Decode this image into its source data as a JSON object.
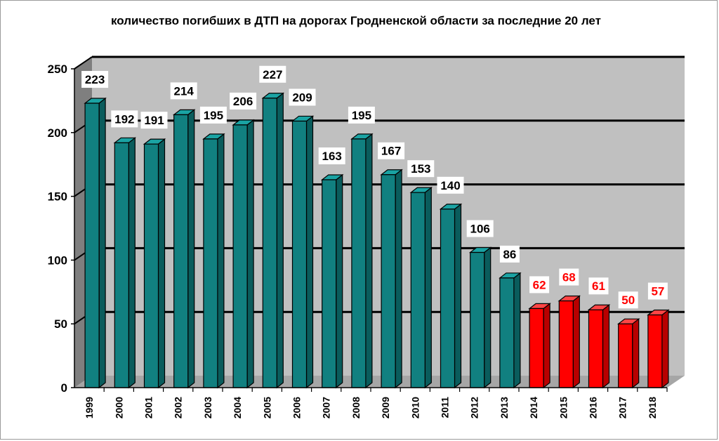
{
  "chart_data": {
    "type": "bar",
    "title": "количество погибших в ДТП на дорогах Гродненской области за последние 20 лет",
    "xlabel": "",
    "ylabel": "",
    "categories": [
      "1999",
      "2000",
      "2001",
      "2002",
      "2003",
      "2004",
      "2005",
      "2006",
      "2007",
      "2008",
      "2009",
      "2010",
      "2011",
      "2012",
      "2013",
      "2014",
      "2015",
      "2016",
      "2017",
      "2018"
    ],
    "values": [
      223,
      192,
      191,
      214,
      195,
      206,
      227,
      209,
      163,
      195,
      167,
      153,
      140,
      106,
      86,
      62,
      68,
      61,
      50,
      57
    ],
    "labels": [
      "223",
      "192",
      "191",
      "214",
      "195",
      "206",
      "227",
      "209",
      "163",
      "195",
      "167",
      "153",
      "140",
      "106",
      "86",
      "62",
      "68",
      "61",
      "50",
      "57"
    ],
    "ylim": [
      0,
      250
    ],
    "yticks": [
      0,
      50,
      100,
      150,
      200,
      250
    ],
    "ytick_labels": [
      "0",
      "50",
      "100",
      "150",
      "200",
      "250"
    ],
    "grid": true,
    "legend": "none",
    "three_d": true,
    "colors": {
      "bar_default": "#118080",
      "bar_default_side": "#0a5c5c",
      "bar_default_top": "#1aa3a3",
      "bar_highlight": "#ff0000",
      "bar_highlight_side": "#b80000",
      "bar_highlight_top": "#ff4545",
      "label_default": "#000000",
      "label_highlight": "#ff0000",
      "plot_background": "#c0c0c0",
      "gridline": "#000000"
    },
    "highlight_categories": [
      "2014",
      "2015",
      "2016",
      "2017",
      "2018"
    ]
  }
}
